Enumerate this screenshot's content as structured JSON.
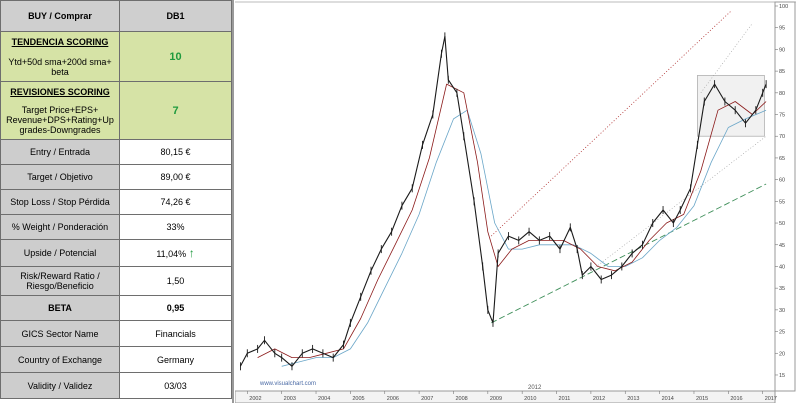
{
  "panel": {
    "header": {
      "left": "BUY / Comprar",
      "right": "DB1"
    },
    "tendencia": {
      "title": "TENDENCIA SCORING",
      "desc": "Ytd+50d sma+200d  sma+ beta",
      "value": "10"
    },
    "revisiones": {
      "title": "REVISIONES SCORING",
      "desc": "Target Price+EPS+ Revenue+DPS+Rating+Up grades-Downgrades",
      "value": "7"
    },
    "rows": [
      {
        "label": "Entry / Entrada",
        "value": "80,15 €"
      },
      {
        "label": "Target / Objetivo",
        "value": "89,00 €"
      },
      {
        "label": "Stop Loss / Stop Pérdida",
        "value": "74,26 €"
      },
      {
        "label": "% Weight / Ponderación",
        "value": "33%"
      },
      {
        "label": "Upside / Potencial",
        "value": "11,04%",
        "icon": "up-arrow-icon"
      },
      {
        "label": "Risk/Reward  Ratio / Riesgo/Beneficio",
        "value": "1,50"
      },
      {
        "label": "BETA",
        "value": "0,95"
      },
      {
        "label": "GICS Sector Name",
        "value": "Financials"
      },
      {
        "label": "Country of Exchange",
        "value": "Germany"
      },
      {
        "label": "Validity / Validez",
        "value": "03/03"
      }
    ]
  },
  "chart_data": {
    "type": "line",
    "watermark": "www.visualchart.com",
    "x_ticks": [
      "2002",
      "2003",
      "2004",
      "2005",
      "2006",
      "2007",
      "2008",
      "2009",
      "2010",
      "2011",
      "2012",
      "2013",
      "2014",
      "2015",
      "2016",
      "2017"
    ],
    "x_mid_label": "2012",
    "y_ticks": [
      "100",
      "95",
      "90",
      "85",
      "80",
      "75",
      "70",
      "65",
      "60",
      "55",
      "50",
      "45",
      "40",
      "35",
      "30",
      "25",
      "20",
      "15"
    ],
    "ylim": [
      12,
      100
    ],
    "series": [
      {
        "role": "price",
        "points": [
          [
            2001.8,
            17
          ],
          [
            2002.0,
            20
          ],
          [
            2002.3,
            21
          ],
          [
            2002.5,
            23
          ],
          [
            2002.8,
            20
          ],
          [
            2003.0,
            19
          ],
          [
            2003.3,
            17
          ],
          [
            2003.6,
            20
          ],
          [
            2003.9,
            21
          ],
          [
            2004.2,
            20
          ],
          [
            2004.5,
            19
          ],
          [
            2004.8,
            22
          ],
          [
            2005.0,
            27
          ],
          [
            2005.3,
            33
          ],
          [
            2005.6,
            39
          ],
          [
            2005.9,
            44
          ],
          [
            2006.2,
            48
          ],
          [
            2006.5,
            54
          ],
          [
            2006.8,
            58
          ],
          [
            2007.1,
            68
          ],
          [
            2007.4,
            75
          ],
          [
            2007.65,
            89
          ],
          [
            2007.75,
            93
          ],
          [
            2007.85,
            83
          ],
          [
            2008.1,
            80
          ],
          [
            2008.3,
            70
          ],
          [
            2008.6,
            55
          ],
          [
            2008.85,
            40
          ],
          [
            2009.0,
            30
          ],
          [
            2009.15,
            27
          ],
          [
            2009.3,
            43
          ],
          [
            2009.6,
            47
          ],
          [
            2009.9,
            46
          ],
          [
            2010.2,
            48
          ],
          [
            2010.5,
            46
          ],
          [
            2010.8,
            47
          ],
          [
            2011.1,
            44
          ],
          [
            2011.4,
            49
          ],
          [
            2011.6,
            44
          ],
          [
            2011.75,
            38
          ],
          [
            2012.0,
            40
          ],
          [
            2012.3,
            37
          ],
          [
            2012.6,
            38
          ],
          [
            2012.9,
            40
          ],
          [
            2013.2,
            43
          ],
          [
            2013.5,
            45
          ],
          [
            2013.8,
            50
          ],
          [
            2014.1,
            53
          ],
          [
            2014.4,
            50
          ],
          [
            2014.6,
            53
          ],
          [
            2014.9,
            58
          ],
          [
            2015.1,
            68
          ],
          [
            2015.3,
            78
          ],
          [
            2015.6,
            82
          ],
          [
            2015.9,
            78
          ],
          [
            2016.2,
            76
          ],
          [
            2016.5,
            73
          ],
          [
            2016.8,
            76
          ],
          [
            2017.0,
            80
          ],
          [
            2017.1,
            82
          ]
        ]
      },
      {
        "role": "moving-average-red",
        "points": [
          [
            2002.3,
            19
          ],
          [
            2002.8,
            21
          ],
          [
            2003.3,
            19
          ],
          [
            2003.8,
            19
          ],
          [
            2004.3,
            20
          ],
          [
            2004.8,
            21
          ],
          [
            2005.3,
            28
          ],
          [
            2005.8,
            37
          ],
          [
            2006.3,
            45
          ],
          [
            2006.8,
            53
          ],
          [
            2007.3,
            65
          ],
          [
            2007.8,
            82
          ],
          [
            2008.3,
            80
          ],
          [
            2008.7,
            64
          ],
          [
            2009.0,
            48
          ],
          [
            2009.3,
            40
          ],
          [
            2009.7,
            44
          ],
          [
            2010.2,
            46
          ],
          [
            2010.7,
            46
          ],
          [
            2011.2,
            46
          ],
          [
            2011.7,
            44
          ],
          [
            2012.2,
            40
          ],
          [
            2012.7,
            39
          ],
          [
            2013.2,
            41
          ],
          [
            2013.7,
            46
          ],
          [
            2014.2,
            50
          ],
          [
            2014.7,
            52
          ],
          [
            2015.2,
            62
          ],
          [
            2015.7,
            76
          ],
          [
            2016.2,
            78
          ],
          [
            2016.7,
            75
          ],
          [
            2017.1,
            78
          ]
        ]
      },
      {
        "role": "moving-average-blue",
        "points": [
          [
            2003.0,
            17
          ],
          [
            2003.5,
            18
          ],
          [
            2004.0,
            19
          ],
          [
            2004.5,
            19
          ],
          [
            2005.0,
            21
          ],
          [
            2005.5,
            27
          ],
          [
            2006.0,
            35
          ],
          [
            2006.5,
            43
          ],
          [
            2007.0,
            52
          ],
          [
            2007.5,
            64
          ],
          [
            2008.0,
            74
          ],
          [
            2008.4,
            76
          ],
          [
            2008.8,
            66
          ],
          [
            2009.2,
            50
          ],
          [
            2009.6,
            44
          ],
          [
            2010.0,
            44
          ],
          [
            2010.5,
            45
          ],
          [
            2011.0,
            45
          ],
          [
            2011.5,
            45
          ],
          [
            2012.0,
            43
          ],
          [
            2012.5,
            40
          ],
          [
            2013.0,
            40
          ],
          [
            2013.5,
            42
          ],
          [
            2014.0,
            46
          ],
          [
            2014.5,
            49
          ],
          [
            2015.0,
            54
          ],
          [
            2015.5,
            64
          ],
          [
            2016.0,
            72
          ],
          [
            2016.5,
            74
          ],
          [
            2017.1,
            76
          ]
        ]
      }
    ],
    "trendlines": [
      {
        "style": "green-dashed",
        "from": [
          2009.1,
          27
        ],
        "to": [
          2017.1,
          59
        ]
      },
      {
        "style": "gray-dotted",
        "from": [
          2012.0,
          39
        ],
        "to": [
          2017.1,
          70
        ]
      },
      {
        "style": "red-dotted",
        "from": [
          2009.1,
          47
        ],
        "to": [
          2016.1,
          99
        ]
      },
      {
        "style": "gray-dotted",
        "from": [
          2015.2,
          80
        ],
        "to": [
          2016.7,
          96
        ]
      }
    ],
    "range_box": {
      "x": [
        2015.1,
        2017.05
      ],
      "y": [
        70,
        84
      ]
    },
    "colors": {
      "price": "#1a1a1a",
      "ma_red": "#8b1a1a",
      "ma_blue": "#6aa6c8",
      "trend_green": "#3f8f5a",
      "trend_red": "#b03030",
      "trend_gray": "#9a9a9a",
      "box": "#b0b0b0"
    }
  }
}
